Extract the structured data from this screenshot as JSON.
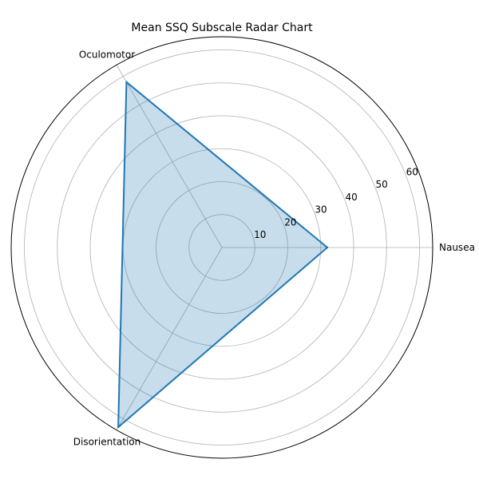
{
  "chart_data": {
    "type": "radar",
    "title": "Mean SSQ Subscale Radar Chart",
    "categories": [
      "Nausea",
      "Oculomotor",
      "Disorientation"
    ],
    "values": [
      32,
      58,
      63
    ],
    "rlim": [
      0,
      64
    ],
    "rticks": [
      10,
      20,
      30,
      40,
      50,
      60
    ],
    "grid": true,
    "fill_alpha": 0.25,
    "colors": {
      "line": "#1f77b4",
      "fill": "#1f77b4",
      "grid": "#b0b0b0",
      "frame": "#000000"
    }
  }
}
